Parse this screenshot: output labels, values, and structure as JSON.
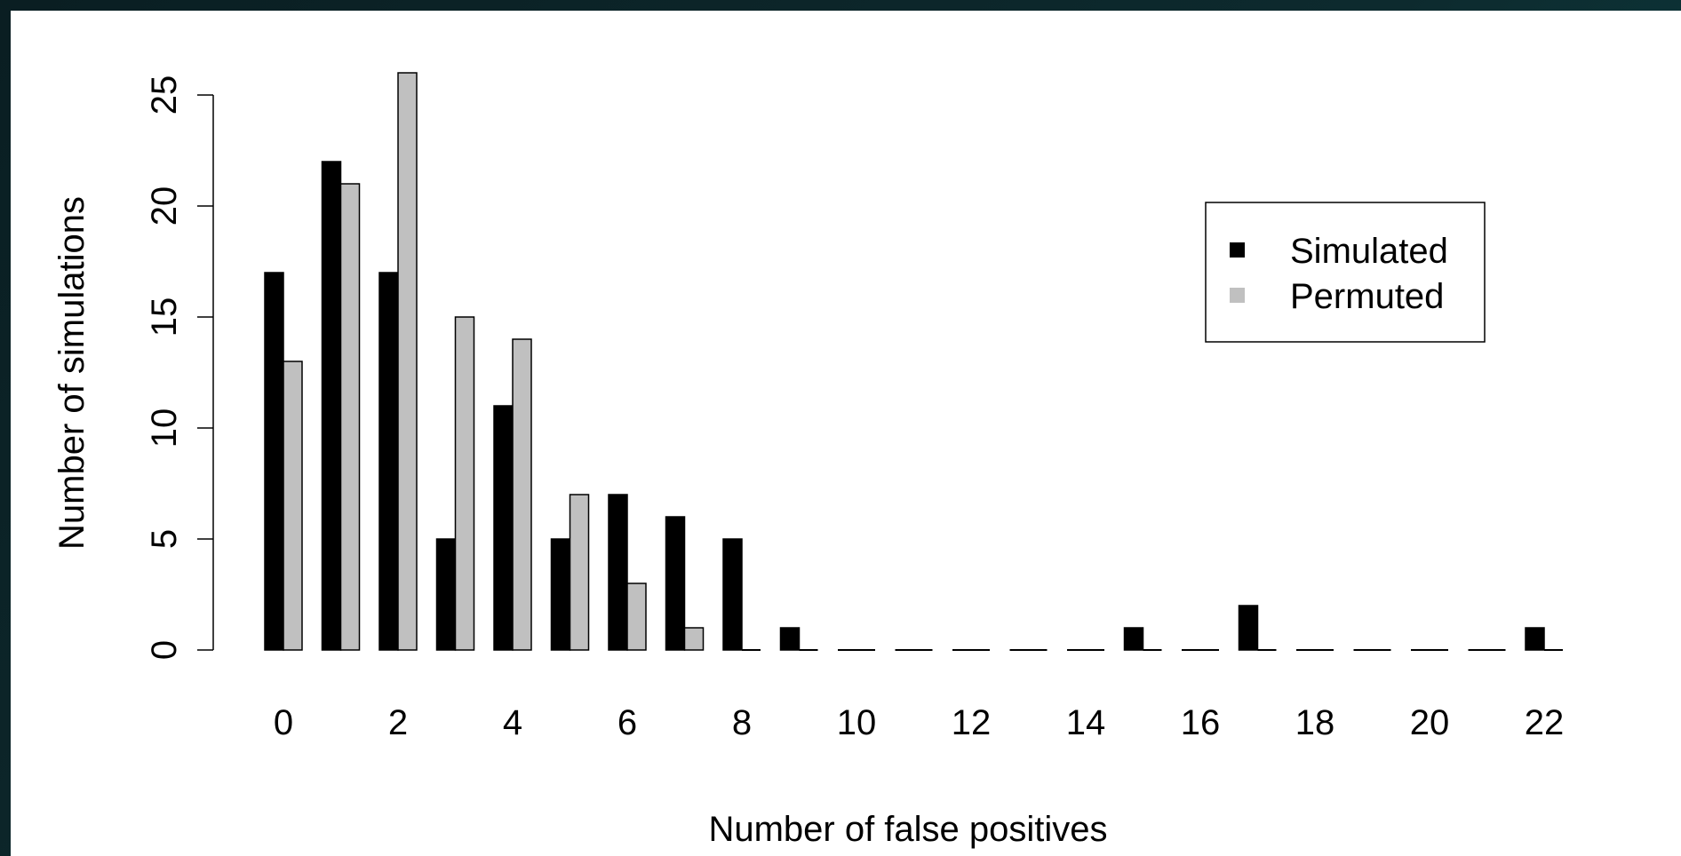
{
  "colors": {
    "simulated": "#000000",
    "permuted": "#c0c0c0",
    "background": "#ffffff"
  },
  "chart_data": {
    "type": "bar",
    "categories": [
      "0",
      "1",
      "2",
      "3",
      "4",
      "5",
      "6",
      "7",
      "8",
      "9",
      "10",
      "11",
      "12",
      "13",
      "14",
      "15",
      "16",
      "17",
      "18",
      "19",
      "20",
      "21",
      "22"
    ],
    "x_tick_labels": [
      "0",
      "2",
      "4",
      "6",
      "8",
      "10",
      "12",
      "14",
      "16",
      "18",
      "20",
      "22"
    ],
    "y_ticks": [
      0,
      5,
      10,
      15,
      20,
      25
    ],
    "ylim": [
      0,
      27
    ],
    "xlabel": "Number of false positives",
    "ylabel": "Number of simulations",
    "grid": false,
    "legend_position": "top-right",
    "series": [
      {
        "name": "Simulated",
        "color": "#000000",
        "values": [
          17,
          22,
          17,
          5,
          11,
          5,
          7,
          6,
          5,
          1,
          0,
          0,
          0,
          0,
          0,
          1,
          0,
          2,
          0,
          0,
          0,
          0,
          1
        ]
      },
      {
        "name": "Permuted",
        "color": "#c0c0c0",
        "values": [
          13,
          21,
          26,
          15,
          14,
          7,
          3,
          1,
          0,
          0,
          0,
          0,
          0,
          0,
          0,
          0,
          0,
          0,
          0,
          0,
          0,
          0,
          0
        ]
      }
    ]
  }
}
